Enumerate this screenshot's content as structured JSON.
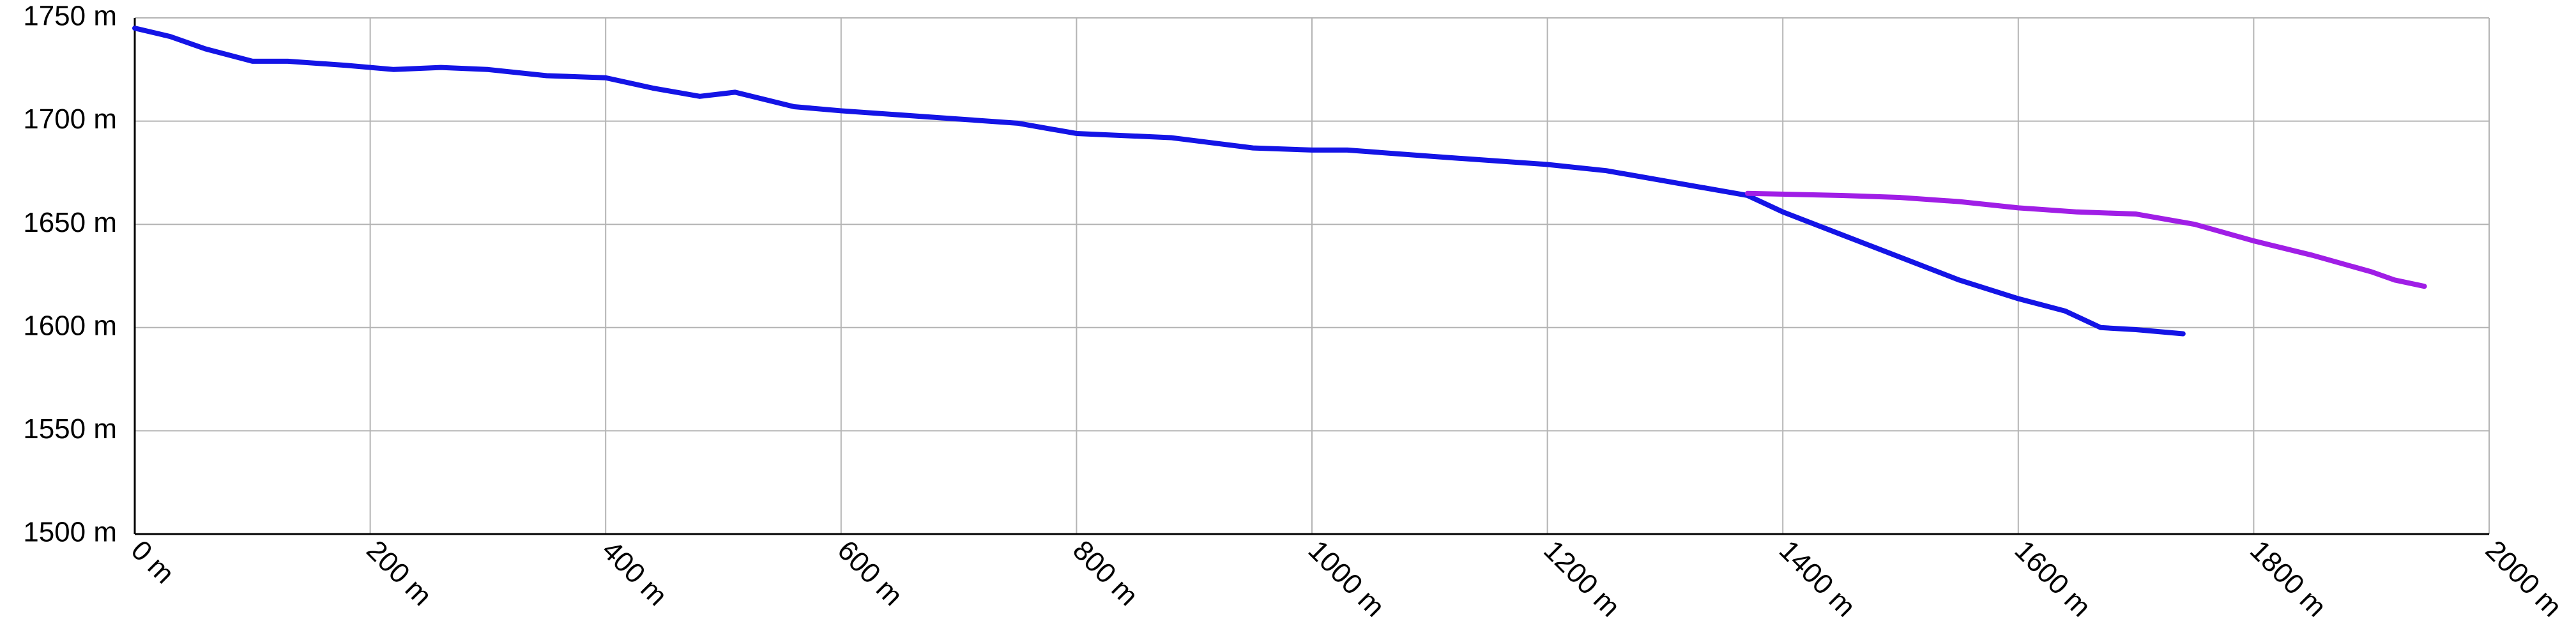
{
  "chart_data": {
    "type": "line",
    "series": [
      {
        "color": "#1414e6",
        "x": [
          0,
          30,
          60,
          100,
          130,
          180,
          220,
          260,
          300,
          350,
          400,
          440,
          480,
          510,
          560,
          600,
          700,
          750,
          800,
          880,
          950,
          1000,
          1030,
          1100,
          1200,
          1250,
          1300,
          1370,
          1400,
          1450,
          1500,
          1550,
          1600,
          1640,
          1670,
          1700,
          1740
        ],
        "values": [
          1745,
          1741,
          1735,
          1729,
          1729,
          1727,
          1725,
          1726,
          1725,
          1722,
          1721,
          1716,
          1712,
          1714,
          1707,
          1705,
          1701,
          1699,
          1694,
          1692,
          1687,
          1686,
          1686,
          1683,
          1679,
          1676,
          1671,
          1664,
          1656,
          1645,
          1634,
          1623,
          1614,
          1608,
          1600,
          1599,
          1597
        ]
      },
      {
        "color": "#a01ee6",
        "x": [
          1370,
          1450,
          1500,
          1550,
          1600,
          1650,
          1700,
          1750,
          1800,
          1850,
          1900,
          1920,
          1945
        ],
        "values": [
          1665,
          1664,
          1663,
          1661,
          1658,
          1656,
          1655,
          1650,
          1642,
          1635,
          1627,
          1623,
          1620
        ]
      }
    ],
    "xlim": [
      0,
      2000
    ],
    "xticks": [
      {
        "value": 0,
        "label": "0 m"
      },
      {
        "value": 200,
        "label": "200 m"
      },
      {
        "value": 400,
        "label": "400 m"
      },
      {
        "value": 600,
        "label": "600 m"
      },
      {
        "value": 800,
        "label": "800 m"
      },
      {
        "value": 1000,
        "label": "1000 m"
      },
      {
        "value": 1200,
        "label": "1200 m"
      },
      {
        "value": 1400,
        "label": "1400 m"
      },
      {
        "value": 1600,
        "label": "1600 m"
      },
      {
        "value": 1800,
        "label": "1800 m"
      },
      {
        "value": 2000,
        "label": "2000 m"
      }
    ],
    "ylim": [
      1500,
      1750
    ],
    "yticks": [
      {
        "value": 1500,
        "label": "1500 m"
      },
      {
        "value": 1550,
        "label": "1550 m"
      },
      {
        "value": 1600,
        "label": "1600 m"
      },
      {
        "value": 1650,
        "label": "1650 m"
      },
      {
        "value": 1700,
        "label": "1700 m"
      },
      {
        "value": 1750,
        "label": "1750 m"
      }
    ],
    "grid": true
  }
}
